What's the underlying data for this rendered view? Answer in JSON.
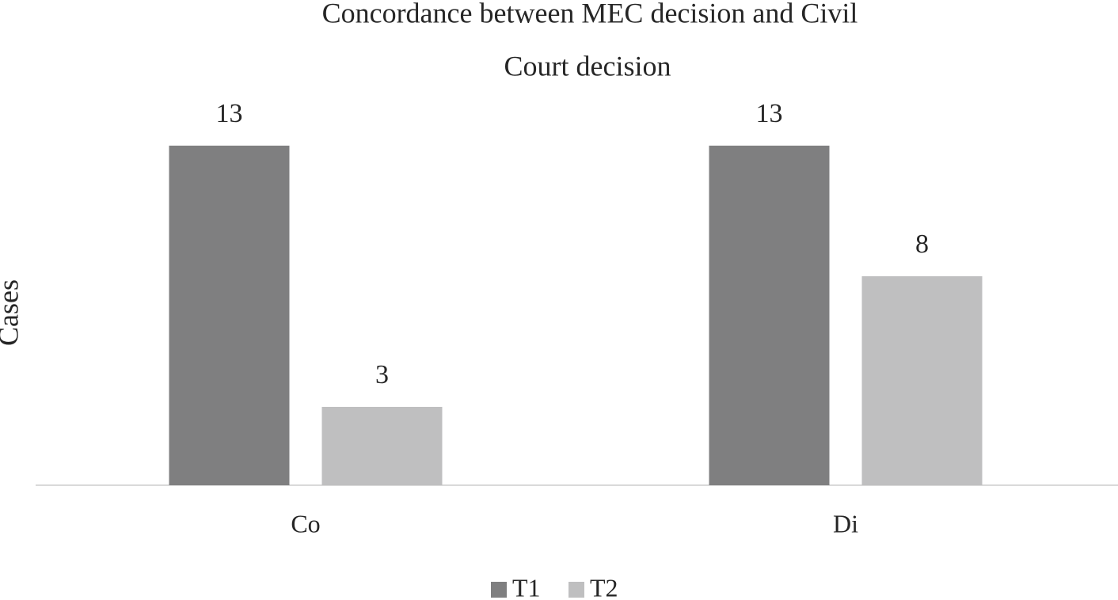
{
  "chart_data": {
    "type": "bar",
    "title": [
      "Concordance between MEC decision and Civil",
      "Court decision"
    ],
    "y_label": "Cases",
    "categories": [
      "Co",
      "Di"
    ],
    "series": [
      {
        "name": "T1",
        "color": "#7f7f80",
        "values": [
          13,
          13
        ]
      },
      {
        "name": "T2",
        "color": "#bfbfc0",
        "values": [
          3,
          8
        ]
      }
    ],
    "legend": "bottom"
  }
}
